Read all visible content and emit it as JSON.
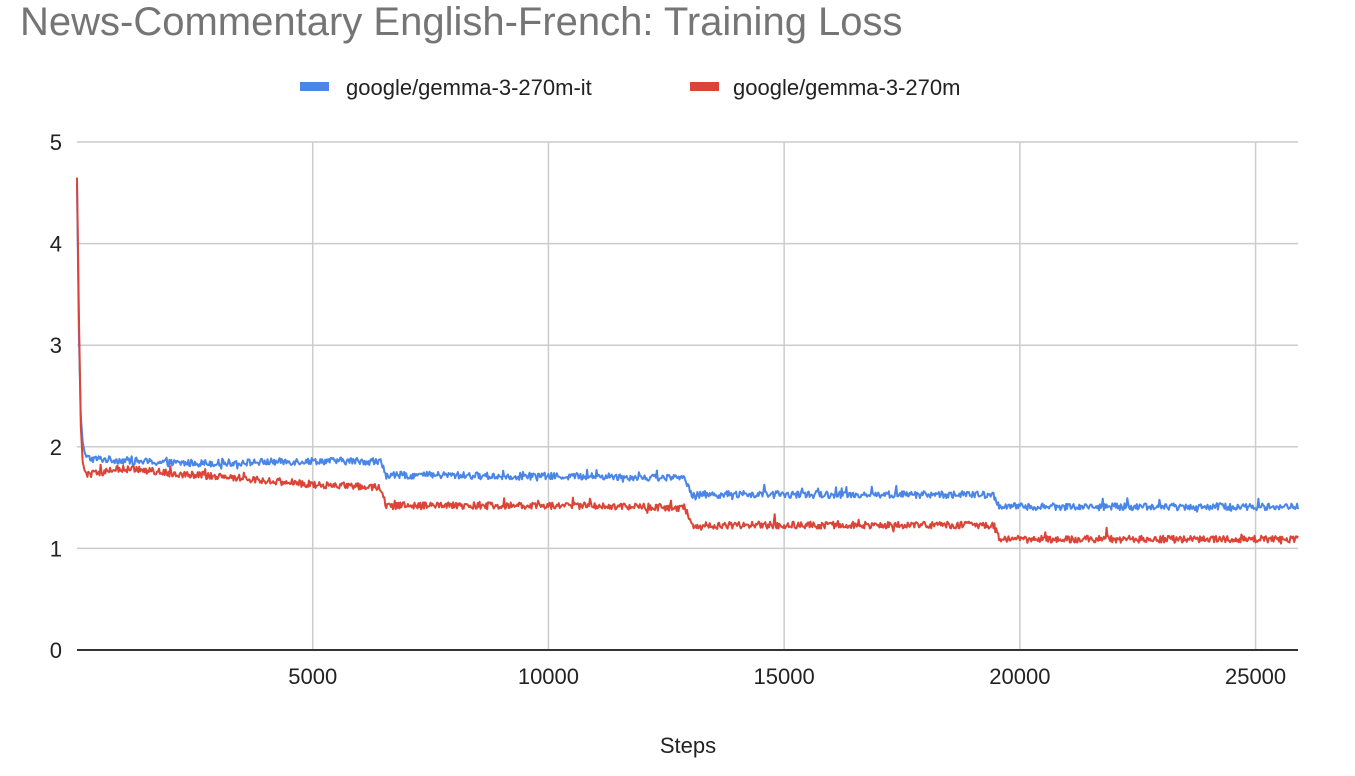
{
  "chart_data": {
    "type": "line",
    "title": "News-Commentary English-French: Training Loss",
    "xlabel": "Steps",
    "ylabel": "",
    "xlim": [
      0,
      25900
    ],
    "ylim": [
      0,
      5
    ],
    "xticks": [
      5000,
      10000,
      15000,
      20000,
      25000
    ],
    "yticks": [
      0,
      1,
      2,
      3,
      4,
      5
    ],
    "grid": true,
    "legend": "top",
    "series": [
      {
        "name": "google/gemma-3-270m-it",
        "color": "#4a86e8",
        "x": [
          0,
          40,
          80,
          120,
          160,
          200,
          300,
          500,
          800,
          1200,
          1600,
          2000,
          3000,
          4000,
          5000,
          6000,
          6450,
          6550,
          7000,
          8000,
          9000,
          10000,
          11000,
          12000,
          12900,
          13050,
          14000,
          15000,
          16000,
          17000,
          18000,
          19000,
          19450,
          19550,
          20000,
          21000,
          22000,
          23000,
          24000,
          25000,
          25900
        ],
        "y": [
          4.6,
          3.1,
          2.3,
          2.05,
          1.95,
          1.9,
          1.88,
          1.88,
          1.87,
          1.86,
          1.85,
          1.84,
          1.84,
          1.85,
          1.86,
          1.86,
          1.85,
          1.72,
          1.72,
          1.72,
          1.71,
          1.71,
          1.71,
          1.7,
          1.69,
          1.53,
          1.53,
          1.53,
          1.53,
          1.53,
          1.53,
          1.53,
          1.52,
          1.42,
          1.41,
          1.41,
          1.41,
          1.41,
          1.41,
          1.41,
          1.41
        ]
      },
      {
        "name": "google/gemma-3-270m",
        "color": "#db4437",
        "x": [
          0,
          40,
          80,
          120,
          160,
          200,
          300,
          500,
          800,
          1200,
          1600,
          2000,
          3000,
          4000,
          5000,
          6000,
          6450,
          6550,
          7000,
          8000,
          9000,
          10000,
          11000,
          12000,
          12900,
          13050,
          14000,
          15000,
          16000,
          17000,
          18000,
          19000,
          19450,
          19550,
          20000,
          21000,
          22000,
          23000,
          24000,
          25000,
          25900
        ],
        "y": [
          4.65,
          3.3,
          2.2,
          1.85,
          1.77,
          1.74,
          1.73,
          1.74,
          1.78,
          1.78,
          1.76,
          1.74,
          1.71,
          1.67,
          1.63,
          1.61,
          1.6,
          1.42,
          1.42,
          1.42,
          1.42,
          1.42,
          1.42,
          1.41,
          1.4,
          1.22,
          1.23,
          1.23,
          1.23,
          1.23,
          1.23,
          1.23,
          1.23,
          1.1,
          1.09,
          1.09,
          1.09,
          1.09,
          1.09,
          1.09,
          1.09
        ]
      }
    ]
  }
}
